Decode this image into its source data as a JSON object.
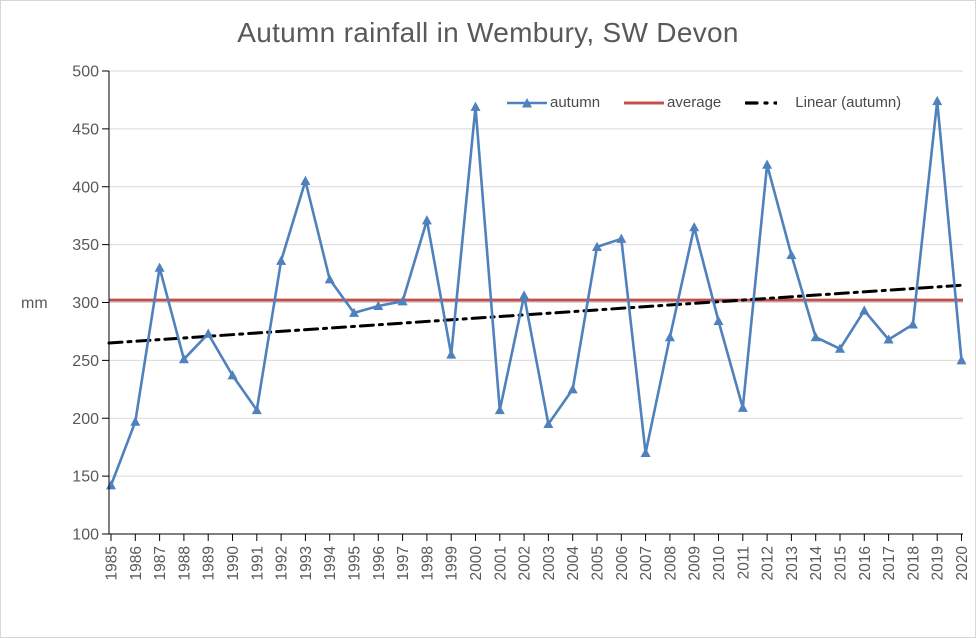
{
  "window": {
    "background": "#ffffff",
    "border_color": "#d7d7d7",
    "text_color": "#595959"
  },
  "chart_data": {
    "type": "line",
    "title": "Autumn rainfall in Wembury, SW Devon",
    "xlabel": "",
    "ylabel": "mm",
    "ylim": [
      100,
      500
    ],
    "y_ticks": [
      100,
      150,
      200,
      250,
      300,
      350,
      400,
      450,
      500
    ],
    "grid": "horizontal",
    "legend_position": "inside-top-right",
    "categories": [
      "1985",
      "1986",
      "1987",
      "1988",
      "1989",
      "1990",
      "1991",
      "1992",
      "1993",
      "1994",
      "1995",
      "1996",
      "1997",
      "1998",
      "1999",
      "2000",
      "2001",
      "2002",
      "2003",
      "2004",
      "2005",
      "2006",
      "2007",
      "2008",
      "2009",
      "2010",
      "2011",
      "2012",
      "2013",
      "2014",
      "2015",
      "2016",
      "2017",
      "2018",
      "2019",
      "2020"
    ],
    "series": [
      {
        "name": "autumn",
        "kind": "line-markers",
        "marker": "triangle",
        "color": "#4f81bd",
        "values": [
          142,
          197,
          330,
          251,
          273,
          237,
          207,
          336,
          405,
          320,
          291,
          297,
          301,
          371,
          255,
          469,
          207,
          306,
          195,
          225,
          348,
          355,
          170,
          270,
          365,
          284,
          209,
          419,
          341,
          270,
          260,
          293,
          268,
          281,
          474,
          250
        ]
      },
      {
        "name": "average",
        "kind": "horizontal-line",
        "color": "#c0504d",
        "value": 302
      },
      {
        "name": "Linear (autumn)",
        "kind": "trend-line",
        "color": "#000000",
        "dash": "dash-dot",
        "start": 265,
        "end": 315
      }
    ],
    "colors": {
      "grid": "#d9d9d9",
      "axis": "#000000",
      "tick_text": "#595959"
    }
  }
}
